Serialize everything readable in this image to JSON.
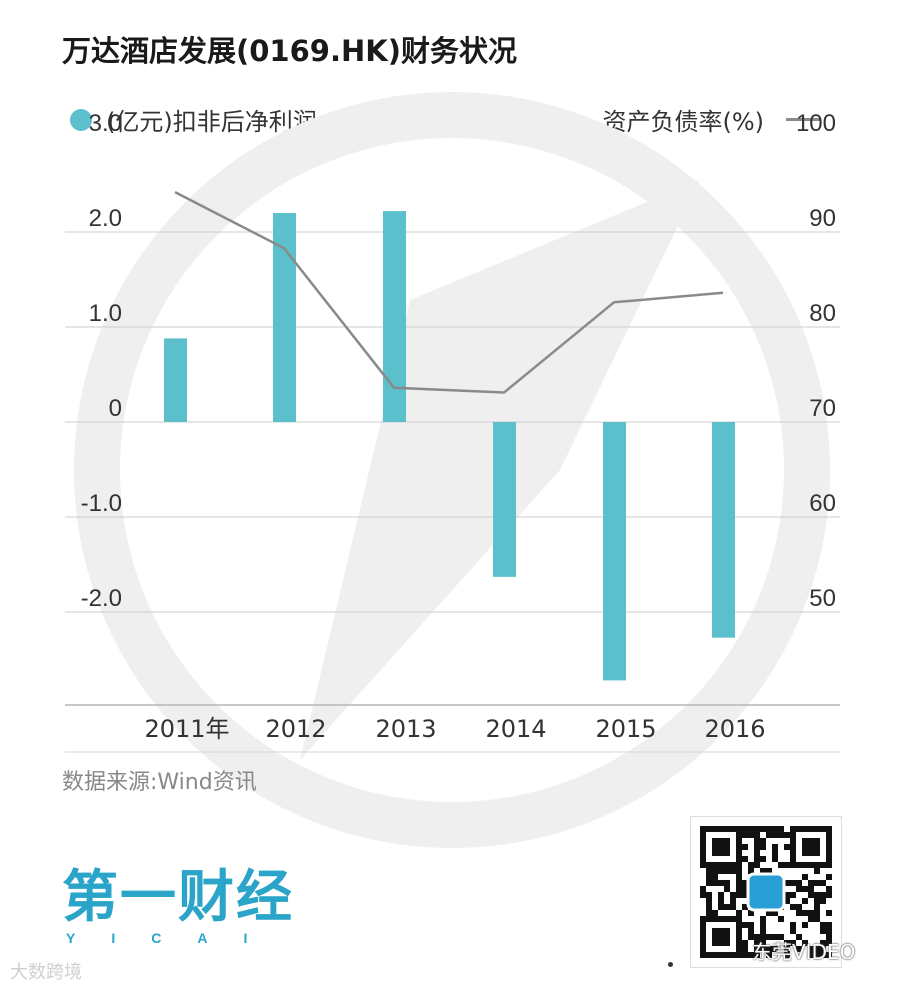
{
  "header": {
    "title": "万达酒店发展(0169.HK)财务状况"
  },
  "legend": {
    "bar_label": "(亿元)扣非后净利润",
    "line_label": "资产负债率(%)"
  },
  "colors": {
    "bar": "#5bc0cc",
    "line": "#8a8a8a",
    "grid": "#cccccc",
    "watermark": "#efefef"
  },
  "chart_data": {
    "type": "bar+line",
    "categories": [
      "2011年",
      "2012",
      "2013",
      "2014",
      "2015",
      "2016"
    ],
    "series": [
      {
        "name": "(亿元)扣非后净利润",
        "type": "bar",
        "axis": "left",
        "values": [
          0.88,
          2.2,
          2.22,
          -1.63,
          -2.72,
          -2.27
        ]
      },
      {
        "name": "资产负债率(%)",
        "type": "line",
        "axis": "right",
        "values": [
          94.2,
          88.3,
          73.6,
          73.1,
          82.6,
          83.6
        ]
      }
    ],
    "y_left": {
      "ticks": [
        "3.0",
        "2.0",
        "1.0",
        "0",
        "-1.0",
        "-2.0"
      ],
      "tick_values": [
        3,
        2,
        1,
        0,
        -1,
        -2
      ],
      "range": [
        -3,
        3
      ]
    },
    "y_right": {
      "ticks": [
        "100",
        "90",
        "80",
        "70",
        "60",
        "50"
      ],
      "tick_values": [
        100,
        90,
        80,
        70,
        60,
        50
      ],
      "range": [
        40,
        100
      ]
    },
    "grid": true,
    "legend_placement": "top"
  },
  "footer": {
    "source": "数据来源:Wind资讯",
    "logo_main": "第一财经",
    "logo_sub": "YICAI",
    "watermark_left": "大数跨境",
    "watermark_right": "东莞VIDEO"
  }
}
